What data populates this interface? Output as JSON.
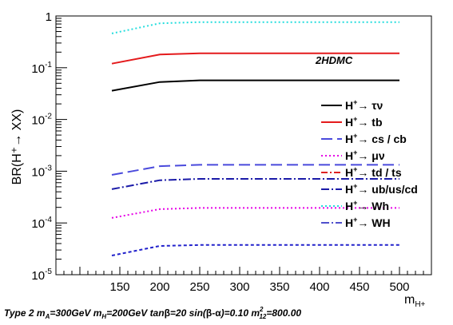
{
  "chart_data": {
    "type": "line",
    "ylabel": "BR(H⁺→ XX)",
    "xlabel": "m",
    "xlabel_sub": "H+",
    "annotation": "2HDMC",
    "footer": "Type 2 m",
    "footer_text": "Type 2 mA=300GeV mH=200GeV tanβ=20 sin(β-α)=0.10 m²₁₂=800.00",
    "xlim": [
      70,
      540
    ],
    "ylim": [
      1e-05,
      1
    ],
    "y_scale": "log",
    "x_ticks": [
      150,
      200,
      250,
      300,
      350,
      400,
      450,
      500
    ],
    "y_ticks": [
      {
        "value": 1,
        "base": "1",
        "exp": ""
      },
      {
        "value": 0.1,
        "base": "10",
        "exp": "-1"
      },
      {
        "value": 0.01,
        "base": "10",
        "exp": "-2"
      },
      {
        "value": 0.001,
        "base": "10",
        "exp": "-3"
      },
      {
        "value": 0.0001,
        "base": "10",
        "exp": "-4"
      },
      {
        "value": 1e-05,
        "base": "10",
        "exp": "-5"
      }
    ],
    "legend_position": "right",
    "series": [
      {
        "name": "τν",
        "color": "#000000",
        "dash": "",
        "x": [
          140,
          200,
          250,
          300,
          350,
          400,
          450,
          500
        ],
        "values": [
          0.036,
          0.053,
          0.057,
          0.057,
          0.057,
          0.057,
          0.057,
          0.057
        ]
      },
      {
        "name": "tb",
        "color": "#e41a1c",
        "dash": "",
        "x": [
          140,
          200,
          250,
          300,
          350,
          400,
          450,
          500
        ],
        "values": [
          0.12,
          0.18,
          0.19,
          0.19,
          0.19,
          0.19,
          0.19,
          0.19
        ]
      },
      {
        "name": "cs / cb",
        "color": "#4a4adc",
        "dash": "14,6",
        "x": [
          140,
          200,
          250,
          300,
          350,
          400,
          450,
          500
        ],
        "values": [
          0.00085,
          0.00125,
          0.00133,
          0.00133,
          0.00133,
          0.00133,
          0.00133,
          0.00133
        ]
      },
      {
        "name": "μν",
        "color": "#e600e6",
        "dash": "2,3",
        "x": [
          140,
          200,
          250,
          300,
          350,
          400,
          450,
          500
        ],
        "values": [
          0.000125,
          0.000185,
          0.000195,
          0.000195,
          0.000195,
          0.000195,
          0.000195,
          0.000195
        ]
      },
      {
        "name": "td / ts",
        "color": "#dd2222",
        "dash": "8,3,2,3",
        "x": [],
        "values": []
      },
      {
        "name": "ub/us/cd",
        "color": "#1a1aa8",
        "dash": "10,3,2,3",
        "x": [
          140,
          200,
          250,
          300,
          350,
          400,
          450,
          500
        ],
        "values": [
          0.00045,
          0.00067,
          0.00071,
          0.00071,
          0.00071,
          0.00071,
          0.00071,
          0.00071
        ]
      },
      {
        "name": "Wh",
        "color": "#22dddd",
        "dash": "2,3",
        "x": [
          140,
          200,
          250,
          300,
          350,
          400,
          450,
          500
        ],
        "values": [
          0.46,
          0.72,
          0.76,
          0.76,
          0.76,
          0.76,
          0.76,
          0.76
        ]
      },
      {
        "name": "WH",
        "color": "#5050cc",
        "dash": "10,3,2,3",
        "x": [],
        "values": []
      },
      {
        "name": "",
        "color": "#2222cc",
        "dash": "4,3",
        "x": [
          140,
          200,
          250,
          300,
          350,
          400,
          450,
          500
        ],
        "values": [
          2.35e-05,
          3.6e-05,
          3.75e-05,
          3.75e-05,
          3.75e-05,
          3.75e-05,
          3.75e-05,
          3.75e-05
        ]
      }
    ]
  }
}
